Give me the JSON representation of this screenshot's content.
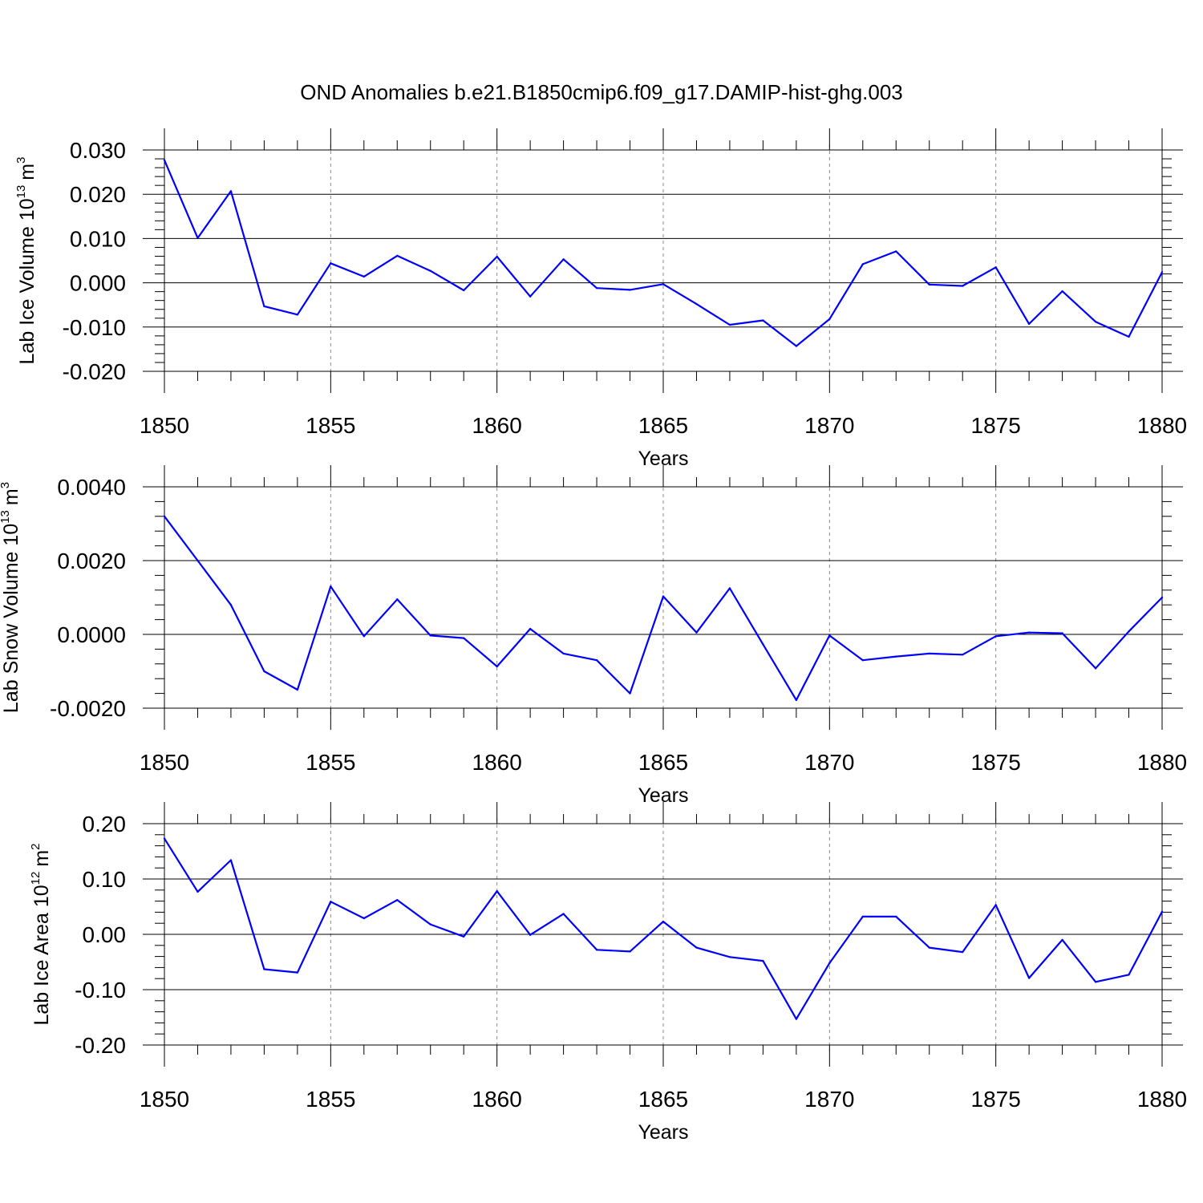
{
  "title": "OND Anomalies b.e21.B1850cmip6.f09_g17.DAMIP-hist-ghg.003",
  "colors": {
    "line": "#0000ff",
    "grid": "#888888",
    "axis": "#000000"
  },
  "chart_data": [
    {
      "type": "line",
      "ylabel": "Lab Ice Volume 10",
      "ylabel_exp": "13",
      "ylabel_unit": "m",
      "ylabel_unit_exp": "3",
      "xlabel": "Years",
      "xlim": [
        1850,
        1880
      ],
      "ylim": [
        -0.02,
        0.03
      ],
      "xticks": [
        1850,
        1855,
        1860,
        1865,
        1870,
        1875,
        1880
      ],
      "xtick_labels": [
        "1850",
        "1855",
        "1860",
        "1865",
        "1870",
        "1875",
        "1880"
      ],
      "yticks": [
        -0.02,
        -0.01,
        0.0,
        0.01,
        0.02,
        0.03
      ],
      "ytick_labels": [
        "-0.020",
        "-0.010",
        "0.000",
        "0.010",
        "0.020",
        "0.030"
      ],
      "x": [
        1850,
        1851,
        1852,
        1853,
        1854,
        1855,
        1856,
        1857,
        1858,
        1859,
        1860,
        1861,
        1862,
        1863,
        1864,
        1865,
        1866,
        1867,
        1868,
        1869,
        1870,
        1871,
        1872,
        1873,
        1874,
        1875,
        1876,
        1877,
        1878,
        1879,
        1880
      ],
      "values": [
        0.0277,
        0.0101,
        0.0207,
        -0.0053,
        -0.0072,
        0.0044,
        0.0014,
        0.0061,
        0.0027,
        -0.0017,
        0.0059,
        -0.0031,
        0.0053,
        -0.0012,
        -0.0016,
        -0.0003,
        -0.0048,
        -0.0095,
        -0.0085,
        -0.0143,
        -0.0082,
        0.0042,
        0.0071,
        -0.0004,
        -0.0007,
        0.0035,
        -0.0093,
        -0.0019,
        -0.0088,
        -0.0122,
        0.0024
      ]
    },
    {
      "type": "line",
      "ylabel": "Lab Snow Volume 10",
      "ylabel_exp": "13",
      "ylabel_unit": "m",
      "ylabel_unit_exp": "3",
      "xlabel": "Years",
      "xlim": [
        1850,
        1880
      ],
      "ylim": [
        -0.002,
        0.004
      ],
      "xticks": [
        1850,
        1855,
        1860,
        1865,
        1870,
        1875,
        1880
      ],
      "xtick_labels": [
        "1850",
        "1855",
        "1860",
        "1865",
        "1870",
        "1875",
        "1880"
      ],
      "yticks": [
        -0.002,
        0.0,
        0.002,
        0.004
      ],
      "ytick_labels": [
        "-0.0020",
        "0.0000",
        "0.0020",
        "0.0040"
      ],
      "x": [
        1850,
        1851,
        1852,
        1853,
        1854,
        1855,
        1856,
        1857,
        1858,
        1859,
        1860,
        1861,
        1862,
        1863,
        1864,
        1865,
        1866,
        1867,
        1868,
        1869,
        1870,
        1871,
        1872,
        1873,
        1874,
        1875,
        1876,
        1877,
        1878,
        1879,
        1880
      ],
      "values": [
        0.0032,
        0.002,
        0.0008,
        -0.001,
        -0.0015,
        0.0013,
        -5e-05,
        0.00095,
        -3e-05,
        -0.0001,
        -0.00087,
        0.00015,
        -0.00052,
        -0.0007,
        -0.0016,
        0.00103,
        5e-05,
        0.00125,
        -0.00027,
        -0.00178,
        -3e-05,
        -0.0007,
        -0.0006,
        -0.00052,
        -0.00055,
        -5e-05,
        5e-05,
        3e-05,
        -0.00092,
        8e-05,
        0.001
      ]
    },
    {
      "type": "line",
      "ylabel": "Lab Ice Area 10",
      "ylabel_exp": "12",
      "ylabel_unit": "m",
      "ylabel_unit_exp": "2",
      "xlabel": "Years",
      "xlim": [
        1850,
        1880
      ],
      "ylim": [
        -0.2,
        0.2
      ],
      "xticks": [
        1850,
        1855,
        1860,
        1865,
        1870,
        1875,
        1880
      ],
      "xtick_labels": [
        "1850",
        "1855",
        "1860",
        "1865",
        "1870",
        "1875",
        "1880"
      ],
      "yticks": [
        -0.2,
        -0.1,
        0.0,
        0.1,
        0.2
      ],
      "ytick_labels": [
        "-0.20",
        "-0.10",
        "0.00",
        "0.10",
        "0.20"
      ],
      "x": [
        1850,
        1851,
        1852,
        1853,
        1854,
        1855,
        1856,
        1857,
        1858,
        1859,
        1860,
        1861,
        1862,
        1863,
        1864,
        1865,
        1866,
        1867,
        1868,
        1869,
        1870,
        1871,
        1872,
        1873,
        1874,
        1875,
        1876,
        1877,
        1878,
        1879,
        1880
      ],
      "values": [
        0.173,
        0.077,
        0.134,
        -0.063,
        -0.069,
        0.059,
        0.029,
        0.062,
        0.018,
        -0.004,
        0.078,
        -0.001,
        0.037,
        -0.028,
        -0.031,
        0.023,
        -0.024,
        -0.041,
        -0.048,
        -0.153,
        -0.052,
        0.032,
        0.032,
        -0.024,
        -0.032,
        0.053,
        -0.079,
        -0.01,
        -0.086,
        -0.073,
        0.041
      ]
    }
  ]
}
